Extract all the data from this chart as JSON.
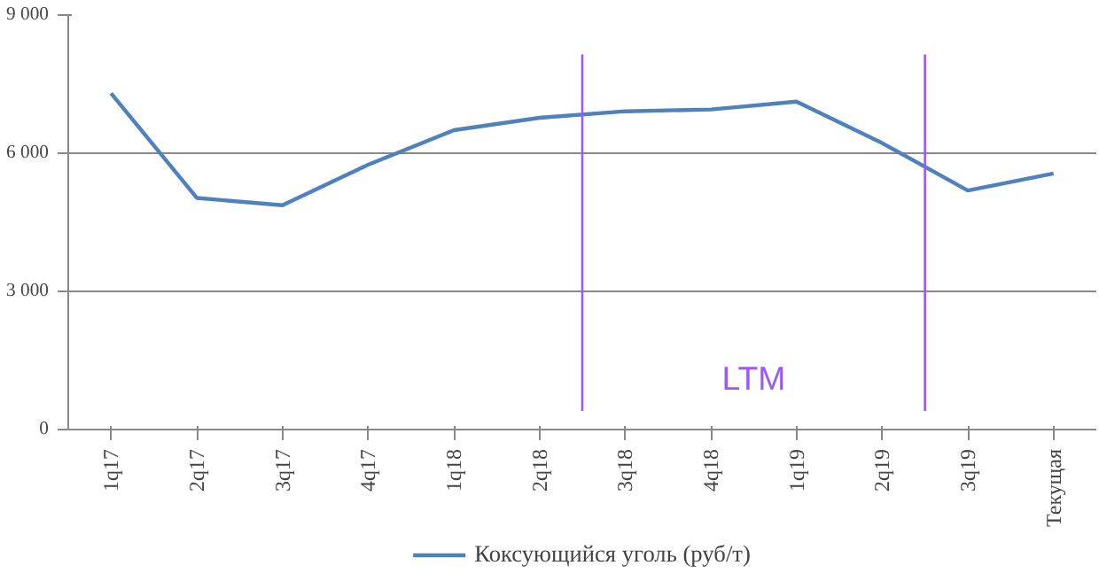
{
  "chart_data": {
    "type": "line",
    "categories": [
      "1q17",
      "2q17",
      "3q17",
      "4q17",
      "1q18",
      "2q18",
      "3q18",
      "4q18",
      "1q19",
      "2q19",
      "3q19",
      "Текущая"
    ],
    "series": [
      {
        "name": "Коксующийся уголь (руб/т)",
        "color": "#4f81bd",
        "values": [
          7300,
          5030,
          4870,
          5750,
          6500,
          6770,
          6910,
          6950,
          7120,
          6220,
          5190,
          5560
        ]
      }
    ],
    "ylim": [
      0,
      9000
    ],
    "yticks": [
      {
        "value": 0,
        "label": "0"
      },
      {
        "value": 3000,
        "label": "3 000"
      },
      {
        "value": 6000,
        "label": "6 000"
      },
      {
        "value": 9000,
        "label": "9 000"
      }
    ],
    "annotations": [
      "LTM"
    ],
    "grid": "y",
    "legend": "bottom",
    "marker": "none",
    "line_style": "solid"
  }
}
